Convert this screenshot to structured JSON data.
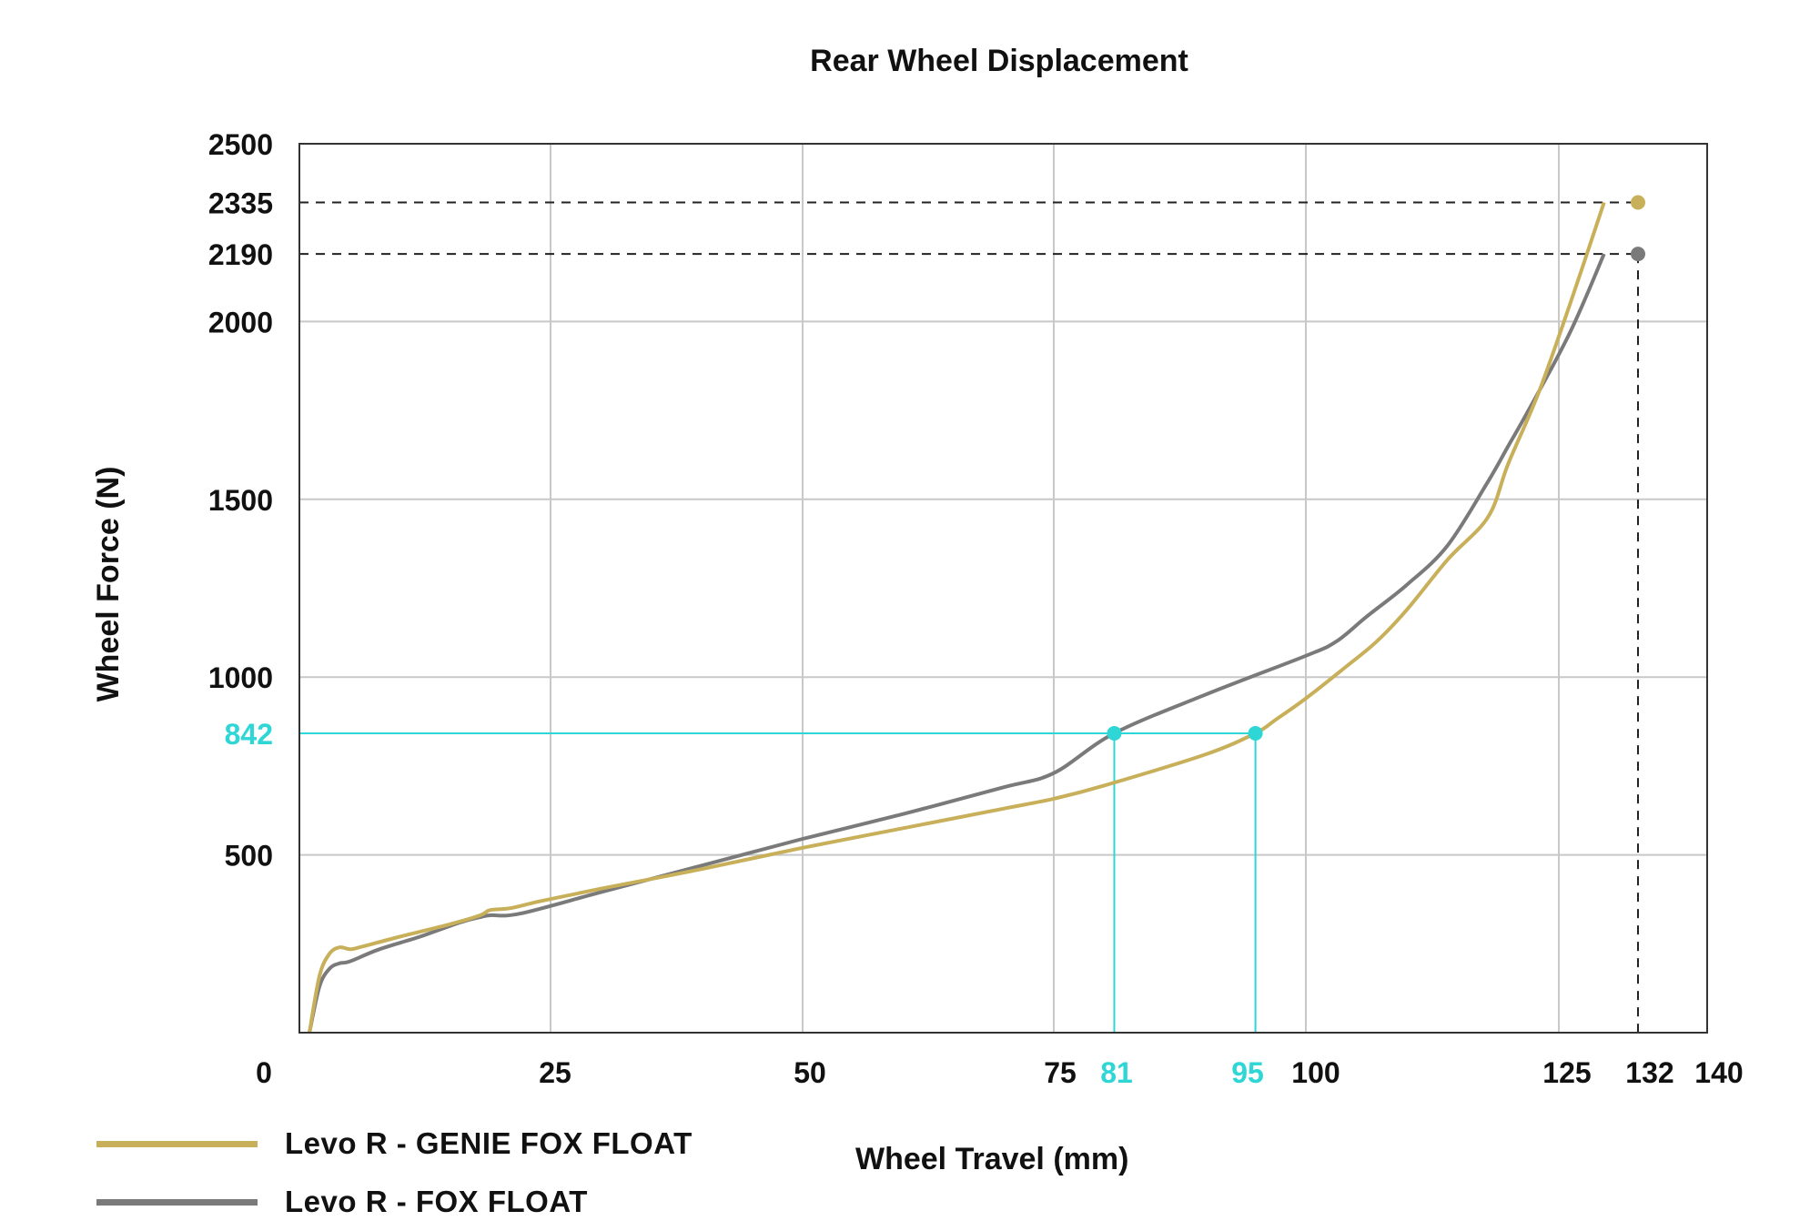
{
  "chart_data": {
    "type": "line",
    "title": "Rear Wheel Displacement",
    "xlabel": "Wheel Travel (mm)",
    "ylabel": "Wheel Force (N)",
    "xlim": [
      0,
      140
    ],
    "ylim": [
      0,
      2500
    ],
    "x_ticks": [
      {
        "value": 0,
        "label": "0"
      },
      {
        "value": 25,
        "label": "25"
      },
      {
        "value": 50,
        "label": "50"
      },
      {
        "value": 75,
        "label": "75"
      },
      {
        "value": 81,
        "label": "81",
        "highlight": true
      },
      {
        "value": 95,
        "label": "95",
        "highlight": true
      },
      {
        "value": 100,
        "label": "100"
      },
      {
        "value": 125,
        "label": "125"
      },
      {
        "value": 132,
        "label": "132"
      },
      {
        "value": 140,
        "label": "140"
      }
    ],
    "y_ticks": [
      {
        "value": 500,
        "label": "500"
      },
      {
        "value": 842,
        "label": "842",
        "highlight": true
      },
      {
        "value": 1000,
        "label": "1000"
      },
      {
        "value": 1500,
        "label": "1500"
      },
      {
        "value": 2000,
        "label": "2000"
      },
      {
        "value": 2190,
        "label": "2190"
      },
      {
        "value": 2335,
        "label": "2335"
      },
      {
        "value": 2500,
        "label": "2500"
      }
    ],
    "x_grid": [
      25,
      50,
      75,
      100,
      125
    ],
    "y_grid": [
      500,
      1000,
      1500,
      2000
    ],
    "legend_position": "bottom-left",
    "series": [
      {
        "name": "Levo R - GENIE FOX FLOAT",
        "color": "#c8b05a",
        "points": [
          [
            1,
            0
          ],
          [
            2,
            160
          ],
          [
            3,
            222
          ],
          [
            4,
            240
          ],
          [
            5,
            235
          ],
          [
            6,
            240
          ],
          [
            10,
            270
          ],
          [
            15,
            305
          ],
          [
            18,
            330
          ],
          [
            19,
            345
          ],
          [
            21,
            350
          ],
          [
            24,
            370
          ],
          [
            30,
            405
          ],
          [
            40,
            460
          ],
          [
            50,
            520
          ],
          [
            60,
            575
          ],
          [
            70,
            630
          ],
          [
            75,
            658
          ],
          [
            80,
            695
          ],
          [
            90,
            782
          ],
          [
            95,
            842
          ],
          [
            97,
            880
          ],
          [
            100,
            940
          ],
          [
            104,
            1030
          ],
          [
            107,
            1100
          ],
          [
            110,
            1190
          ],
          [
            114,
            1330
          ],
          [
            118,
            1450
          ],
          [
            120,
            1600
          ],
          [
            123,
            1800
          ],
          [
            126,
            2050
          ],
          [
            129,
            2335
          ]
        ],
        "endpoint": [
          129,
          2335
        ]
      },
      {
        "name": "Levo R - FOX FLOAT",
        "color": "#7a7a7a",
        "points": [
          [
            1,
            0
          ],
          [
            2,
            130
          ],
          [
            3,
            180
          ],
          [
            4,
            195
          ],
          [
            5,
            200
          ],
          [
            8,
            235
          ],
          [
            12,
            270
          ],
          [
            16,
            310
          ],
          [
            18,
            325
          ],
          [
            19,
            330
          ],
          [
            22,
            335
          ],
          [
            30,
            395
          ],
          [
            40,
            470
          ],
          [
            50,
            545
          ],
          [
            60,
            615
          ],
          [
            70,
            690
          ],
          [
            75,
            730
          ],
          [
            81,
            842
          ],
          [
            90,
            950
          ],
          [
            100,
            1060
          ],
          [
            103,
            1100
          ],
          [
            106,
            1170
          ],
          [
            110,
            1260
          ],
          [
            114,
            1370
          ],
          [
            118,
            1550
          ],
          [
            120,
            1650
          ],
          [
            122,
            1750
          ],
          [
            126,
            1970
          ],
          [
            129,
            2190
          ]
        ],
        "endpoint": [
          129,
          2190
        ]
      }
    ],
    "annotations": [
      {
        "type": "hline",
        "y": 2335,
        "style": "dashed",
        "color": "#222222"
      },
      {
        "type": "hline",
        "y": 2190,
        "style": "dashed",
        "color": "#222222"
      },
      {
        "type": "vline",
        "x": 132,
        "style": "dashed",
        "color": "#222222"
      },
      {
        "type": "hline",
        "y": 842,
        "color": "#2ed6d6"
      },
      {
        "type": "vline",
        "x": 81,
        "color": "#2ed6d6"
      },
      {
        "type": "vline",
        "x": 95,
        "color": "#2ed6d6"
      },
      {
        "type": "point",
        "x": 81,
        "y": 842,
        "color": "#2ed6d6"
      },
      {
        "type": "point",
        "x": 95,
        "y": 842,
        "color": "#2ed6d6"
      }
    ],
    "colors": {
      "highlight": "#2ed6d6",
      "axis": "#333333",
      "grid": "#c8c8c8",
      "text": "#111111"
    }
  }
}
